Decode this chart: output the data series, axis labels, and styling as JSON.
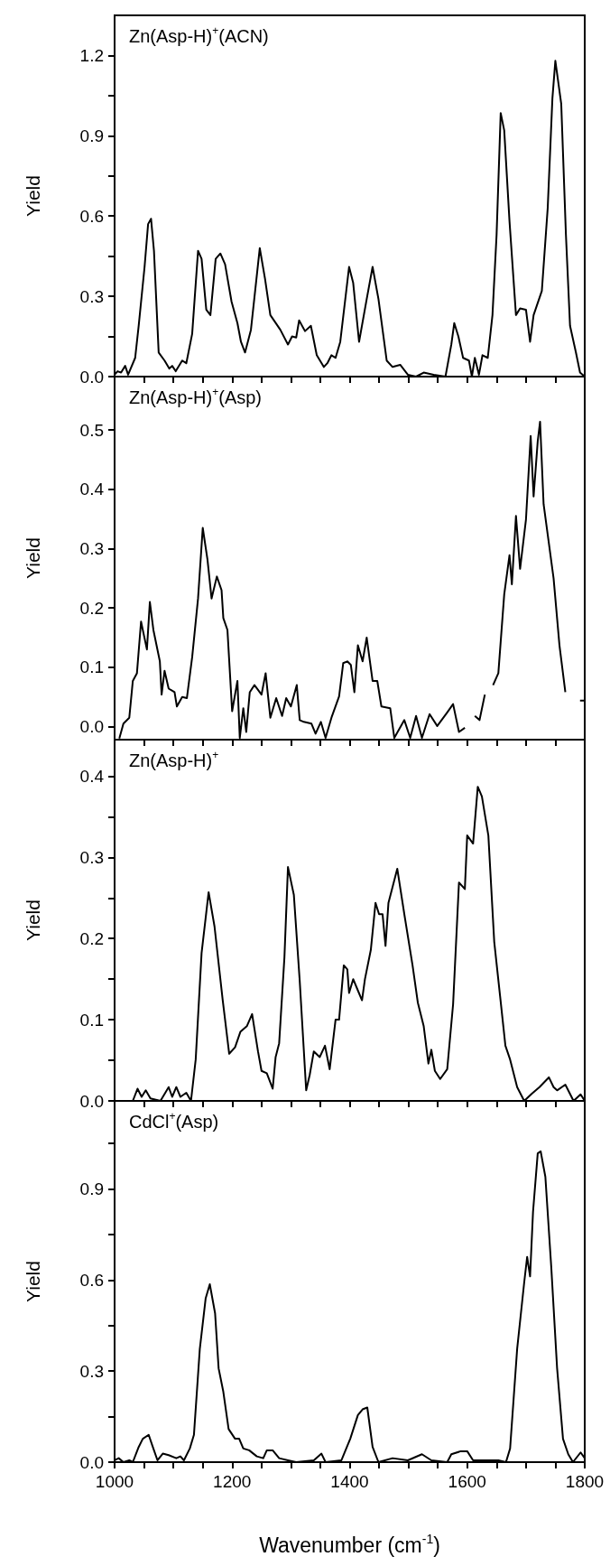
{
  "chart_data": [
    {
      "type": "line",
      "title": "Zn(Asp-H)$^{+}$(ACN)",
      "ylabel": "Yield",
      "tick_labels": "y",
      "marker": "none",
      "line_style": "solid",
      "xlim": [
        1000,
        1800
      ],
      "xticks": [
        {
          "value": 1000,
          "label": null
        },
        {
          "value": 1050,
          "label": null
        },
        {
          "value": 1100,
          "label": null
        },
        {
          "value": 1150,
          "label": null
        },
        {
          "value": 1200,
          "label": null
        },
        {
          "value": 1250,
          "label": null
        },
        {
          "value": 1300,
          "label": null
        },
        {
          "value": 1350,
          "label": null
        },
        {
          "value": 1400,
          "label": null
        },
        {
          "value": 1450,
          "label": null
        },
        {
          "value": 1500,
          "label": null
        },
        {
          "value": 1550,
          "label": null
        },
        {
          "value": 1600,
          "label": null
        },
        {
          "value": 1650,
          "label": null
        },
        {
          "value": 1700,
          "label": null
        },
        {
          "value": 1750,
          "label": null
        },
        {
          "value": 1800,
          "label": null
        }
      ],
      "ylim": [
        0,
        1.35
      ],
      "yticks": [
        {
          "value": 0,
          "label": "0.0"
        },
        {
          "value": 0.15,
          "label": null
        },
        {
          "value": 0.3,
          "label": "0.3"
        },
        {
          "value": 0.45,
          "label": null
        },
        {
          "value": 0.6,
          "label": "0.6"
        },
        {
          "value": 0.75,
          "label": null
        },
        {
          "value": 0.9,
          "label": "0.9"
        },
        {
          "value": 1.05,
          "label": null
        },
        {
          "value": 1.2,
          "label": "1.2"
        }
      ],
      "series": [
        {
          "color": "#000000",
          "x": [
            1000,
            1005,
            1011,
            1018,
            1023,
            1035,
            1041,
            1051,
            1057,
            1062,
            1067,
            1075,
            1085,
            1093,
            1098,
            1104,
            1115,
            1122,
            1132,
            1142,
            1148,
            1156,
            1163,
            1172,
            1180,
            1188,
            1199,
            1209,
            1215,
            1222,
            1232,
            1247,
            1256,
            1265,
            1282,
            1295,
            1302,
            1309,
            1314,
            1324,
            1334,
            1344,
            1356,
            1362,
            1369,
            1376,
            1384,
            1399,
            1406,
            1416,
            1429,
            1439,
            1449,
            1463,
            1473,
            1486,
            1499,
            1513,
            1526,
            1543,
            1563,
            1573,
            1578,
            1585,
            1593,
            1603,
            1608,
            1613,
            1620,
            1626,
            1635,
            1643,
            1650,
            1657,
            1663,
            1672,
            1683,
            1690,
            1700,
            1707,
            1713,
            1727,
            1737,
            1745,
            1750,
            1760,
            1768,
            1775,
            1785,
            1792,
            1800
          ],
          "values": [
            0.007,
            0.02,
            0.015,
            0.04,
            0.007,
            0.07,
            0.19,
            0.41,
            0.57,
            0.59,
            0.47,
            0.09,
            0.06,
            0.03,
            0.04,
            0.02,
            0.06,
            0.05,
            0.16,
            0.47,
            0.44,
            0.25,
            0.23,
            0.44,
            0.46,
            0.42,
            0.28,
            0.2,
            0.13,
            0.09,
            0.175,
            0.48,
            0.365,
            0.23,
            0.175,
            0.12,
            0.15,
            0.146,
            0.21,
            0.17,
            0.19,
            0.08,
            0.036,
            0.05,
            0.08,
            0.07,
            0.13,
            0.41,
            0.35,
            0.13,
            0.29,
            0.41,
            0.29,
            0.06,
            0.036,
            0.044,
            0.007,
            0,
            0.015,
            0.007,
            0,
            0.12,
            0.2,
            0.15,
            0.07,
            0.06,
            0,
            0.07,
            0.007,
            0.08,
            0.07,
            0.23,
            0.53,
            0.985,
            0.92,
            0.58,
            0.23,
            0.255,
            0.25,
            0.13,
            0.23,
            0.32,
            0.63,
            1.04,
            1.18,
            1.02,
            0.53,
            0.19,
            0.09,
            0.015,
            0
          ]
        }
      ]
    },
    {
      "type": "line",
      "title": "Zn(Asp-H)$^{+}$(Asp)",
      "ylabel": "Yield",
      "tick_labels": "y",
      "marker": "none",
      "line_style": "solid",
      "xlim": [
        1000,
        1800
      ],
      "xticks": [
        {
          "value": 1000,
          "label": null
        },
        {
          "value": 1050,
          "label": null
        },
        {
          "value": 1100,
          "label": null
        },
        {
          "value": 1150,
          "label": null
        },
        {
          "value": 1200,
          "label": null
        },
        {
          "value": 1250,
          "label": null
        },
        {
          "value": 1300,
          "label": null
        },
        {
          "value": 1350,
          "label": null
        },
        {
          "value": 1400,
          "label": null
        },
        {
          "value": 1450,
          "label": null
        },
        {
          "value": 1500,
          "label": null
        },
        {
          "value": 1550,
          "label": null
        },
        {
          "value": 1600,
          "label": null
        },
        {
          "value": 1650,
          "label": null
        },
        {
          "value": 1700,
          "label": null
        },
        {
          "value": 1750,
          "label": null
        },
        {
          "value": 1800,
          "label": null
        }
      ],
      "ylim": [
        -0.022,
        0.59
      ],
      "yticks": [
        {
          "value": 0,
          "label": "0.0"
        },
        {
          "value": 0.1,
          "label": "0.1"
        },
        {
          "value": 0.2,
          "label": "0.2"
        },
        {
          "value": 0.3,
          "label": "0.3"
        },
        {
          "value": 0.4,
          "label": "0.4"
        },
        {
          "value": 0.5,
          "label": "0.5"
        }
      ],
      "series": [
        {
          "color": "#000000",
          "x": [
            1008,
            1015,
            1025,
            1031,
            1038,
            1045,
            1055,
            1060,
            1066,
            1077,
            1080,
            1085,
            1092,
            1102,
            1106,
            1115,
            1123,
            1132,
            1142,
            1150,
            1158,
            1165,
            1174,
            1182,
            1185,
            1192,
            1200,
            1209,
            1213,
            1219,
            1224,
            1230,
            1238,
            1250,
            1257,
            1265,
            1275,
            1285,
            1292,
            1300,
            1310,
            1315,
            1322,
            1335,
            1342,
            1351,
            1359,
            1369,
            1382,
            1389,
            1396,
            1402,
            1408,
            1414,
            1422,
            1429,
            1439,
            1447,
            1454,
            1469,
            1476,
            1493,
            1503,
            1513,
            1523,
            1536,
            1549,
            1566,
            1576,
            1586,
            1596,
            1602,
            1613,
            1621,
            1630,
            1638,
            1644,
            1653,
            1663,
            1672,
            1676,
            1683,
            1690,
            1700,
            1708,
            1713,
            1720,
            1724,
            1730,
            1739,
            1747,
            1757,
            1767,
            1780,
            1792,
            1800
          ],
          "values": [
            -0.02,
            0.005,
            0.015,
            0.077,
            0.09,
            0.177,
            0.13,
            0.21,
            0.163,
            0.11,
            0.054,
            0.094,
            0.064,
            0.058,
            0.034,
            0.05,
            0.048,
            0.117,
            0.216,
            0.335,
            0.282,
            0.216,
            0.253,
            0.23,
            0.183,
            0.163,
            0.026,
            0.077,
            -0.019,
            0.031,
            -0.009,
            0.058,
            0.07,
            0.054,
            0.09,
            0.015,
            0.048,
            0.018,
            0.048,
            0.034,
            0.07,
            0.011,
            0.008,
            0.005,
            -0.012,
            0.008,
            -0.019,
            0.015,
            0.051,
            0.107,
            0.11,
            0.104,
            0.058,
            0.137,
            0.11,
            0.15,
            0.077,
            0.077,
            0.034,
            0.031,
            -0.019,
            0.011,
            -0.019,
            0.018,
            -0.019,
            0.021,
            0.001,
            0.024,
            0.038,
            -0.009,
            -0.002,
            null,
            0.018,
            0.011,
            0.054,
            null,
            0.07,
            0.09,
            0.223,
            0.289,
            0.24,
            0.355,
            0.266,
            0.349,
            0.49,
            0.388,
            0.481,
            0.514,
            0.375,
            0.309,
            0.25,
            0.137,
            0.058,
            null,
            0.044,
            0.044
          ]
        }
      ]
    },
    {
      "type": "line",
      "title": "Zn(Asp-H)$^{+}$",
      "ylabel": "Yield",
      "tick_labels": "y",
      "marker": "none",
      "line_style": "solid",
      "xlim": [
        1000,
        1800
      ],
      "xticks": [
        {
          "value": 1000,
          "label": null
        },
        {
          "value": 1050,
          "label": null
        },
        {
          "value": 1100,
          "label": null
        },
        {
          "value": 1150,
          "label": null
        },
        {
          "value": 1200,
          "label": null
        },
        {
          "value": 1250,
          "label": null
        },
        {
          "value": 1300,
          "label": null
        },
        {
          "value": 1350,
          "label": null
        },
        {
          "value": 1400,
          "label": null
        },
        {
          "value": 1450,
          "label": null
        },
        {
          "value": 1500,
          "label": null
        },
        {
          "value": 1550,
          "label": null
        },
        {
          "value": 1600,
          "label": null
        },
        {
          "value": 1650,
          "label": null
        },
        {
          "value": 1700,
          "label": null
        },
        {
          "value": 1750,
          "label": null
        },
        {
          "value": 1800,
          "label": null
        }
      ],
      "ylim": [
        0,
        0.445
      ],
      "yticks": [
        {
          "value": 0,
          "label": "0.0"
        },
        {
          "value": 0.05,
          "label": null
        },
        {
          "value": 0.1,
          "label": "0.1"
        },
        {
          "value": 0.15,
          "label": null
        },
        {
          "value": 0.2,
          "label": "0.2"
        },
        {
          "value": 0.25,
          "label": null
        },
        {
          "value": 0.3,
          "label": "0.3"
        },
        {
          "value": 0.35,
          "label": null
        },
        {
          "value": 0.4,
          "label": "0.4"
        }
      ],
      "series": [
        {
          "color": "#000000",
          "x": [
            1000,
            1031,
            1039,
            1046,
            1053,
            1061,
            1078,
            1092,
            1098,
            1105,
            1112,
            1122,
            1130,
            1138,
            1148,
            1160,
            1170,
            1184,
            1195,
            1205,
            1214,
            1225,
            1234,
            1244,
            1250,
            1259,
            1269,
            1274,
            1280,
            1289,
            1295,
            1305,
            1315,
            1326,
            1332,
            1339,
            1349,
            1358,
            1366,
            1376,
            1382,
            1390,
            1396,
            1399,
            1406,
            1414,
            1421,
            1426,
            1436,
            1444,
            1450,
            1456,
            1461,
            1466,
            1481,
            1493,
            1507,
            1516,
            1526,
            1534,
            1539,
            1545,
            1554,
            1566,
            1576,
            1586,
            1596,
            1600,
            1610,
            1618,
            1625,
            1636,
            1646,
            1656,
            1665,
            1673,
            1685,
            1697,
            1710,
            1723,
            1739,
            1747,
            1753,
            1767,
            1781,
            1793,
            1800
          ],
          "values": [
            0,
            0,
            0.015,
            0.005,
            0.013,
            0.003,
            0,
            0.017,
            0.005,
            0.017,
            0.005,
            0.01,
            0,
            0.051,
            0.182,
            0.257,
            0.215,
            0.124,
            0.058,
            0.066,
            0.085,
            0.092,
            0.107,
            0.061,
            0.037,
            0.034,
            0.015,
            0.054,
            0.071,
            0.177,
            0.288,
            0.254,
            0.148,
            0.013,
            0.032,
            0.061,
            0.054,
            0.068,
            0.039,
            0.1,
            0.1,
            0.167,
            0.162,
            0.133,
            0.15,
            0.136,
            0.124,
            0.15,
            0.186,
            0.244,
            0.23,
            0.23,
            0.191,
            0.244,
            0.286,
            0.23,
            0.167,
            0.121,
            0.092,
            0.046,
            0.063,
            0.037,
            0.027,
            0.039,
            0.119,
            0.269,
            0.261,
            0.327,
            0.317,
            0.387,
            0.375,
            0.327,
            0.196,
            0.129,
            0.068,
            0.051,
            0.017,
            0,
            0.009,
            0.017,
            0.029,
            0.017,
            0.013,
            0.02,
            0,
            0.008,
            0
          ]
        }
      ]
    },
    {
      "type": "line",
      "title": "CdCl$^{+}$(Asp)",
      "ylabel": "Yield",
      "xlabel": "Wavenumber (cm$^{-1}$)",
      "marker": "none",
      "line_style": "solid",
      "xlim": [
        1000,
        1800
      ],
      "xticks": [
        {
          "value": 1000,
          "label": "1000"
        },
        {
          "value": 1050,
          "label": null
        },
        {
          "value": 1100,
          "label": null
        },
        {
          "value": 1150,
          "label": null
        },
        {
          "value": 1200,
          "label": "1200"
        },
        {
          "value": 1250,
          "label": null
        },
        {
          "value": 1300,
          "label": null
        },
        {
          "value": 1350,
          "label": null
        },
        {
          "value": 1400,
          "label": "1400"
        },
        {
          "value": 1450,
          "label": null
        },
        {
          "value": 1500,
          "label": null
        },
        {
          "value": 1550,
          "label": null
        },
        {
          "value": 1600,
          "label": "1600"
        },
        {
          "value": 1650,
          "label": null
        },
        {
          "value": 1700,
          "label": null
        },
        {
          "value": 1750,
          "label": null
        },
        {
          "value": 1800,
          "label": "1800"
        }
      ],
      "ylim": [
        0,
        1.19
      ],
      "yticks": [
        {
          "value": 0,
          "label": "0.0"
        },
        {
          "value": 0.15,
          "label": null
        },
        {
          "value": 0.3,
          "label": "0.3"
        },
        {
          "value": 0.45,
          "label": null
        },
        {
          "value": 0.6,
          "label": "0.6"
        },
        {
          "value": 0.75,
          "label": null
        },
        {
          "value": 0.9,
          "label": "0.9"
        },
        {
          "value": 1.05,
          "label": null
        }
      ],
      "series": [
        {
          "color": "#000000",
          "x": [
            1000,
            1007,
            1015,
            1025,
            1031,
            1041,
            1048,
            1058,
            1065,
            1073,
            1082,
            1092,
            1105,
            1112,
            1118,
            1128,
            1135,
            1145,
            1155,
            1162,
            1171,
            1177,
            1185,
            1194,
            1205,
            1212,
            1219,
            1229,
            1242,
            1253,
            1259,
            1269,
            1280,
            1295,
            1309,
            1339,
            1352,
            1359,
            1386,
            1401,
            1414,
            1422,
            1430,
            1439,
            1449,
            1473,
            1499,
            1523,
            1539,
            1566,
            1573,
            1589,
            1600,
            1610,
            1633,
            1653,
            1666,
            1673,
            1685,
            1697,
            1702,
            1707,
            1712,
            1720,
            1725,
            1733,
            1743,
            1753,
            1763,
            1772,
            1780,
            1793,
            1800
          ],
          "values": [
            0.006,
            0.013,
            0,
            0.006,
            0,
            0.05,
            0.077,
            0.09,
            0.05,
            0.006,
            0.028,
            0.023,
            0.013,
            0.019,
            0.006,
            0.045,
            0.09,
            0.373,
            0.54,
            0.586,
            0.49,
            0.309,
            0.232,
            0.109,
            0.077,
            0.077,
            0.045,
            0.039,
            0.019,
            0.013,
            0.039,
            0.039,
            0.013,
            0.006,
            0,
            0.006,
            0.028,
            0,
            0.006,
            0.077,
            0.155,
            0.174,
            0.18,
            0.05,
            0,
            0.013,
            0.006,
            0.026,
            0.006,
            0,
            0.026,
            0.036,
            0.036,
            0.006,
            0.006,
            0.006,
            0,
            0.045,
            0.373,
            0.592,
            0.676,
            0.612,
            0.824,
            1.017,
            1.024,
            0.94,
            0.644,
            0.309,
            0.077,
            0.026,
            0,
            0.032,
            0.013
          ]
        }
      ]
    }
  ]
}
